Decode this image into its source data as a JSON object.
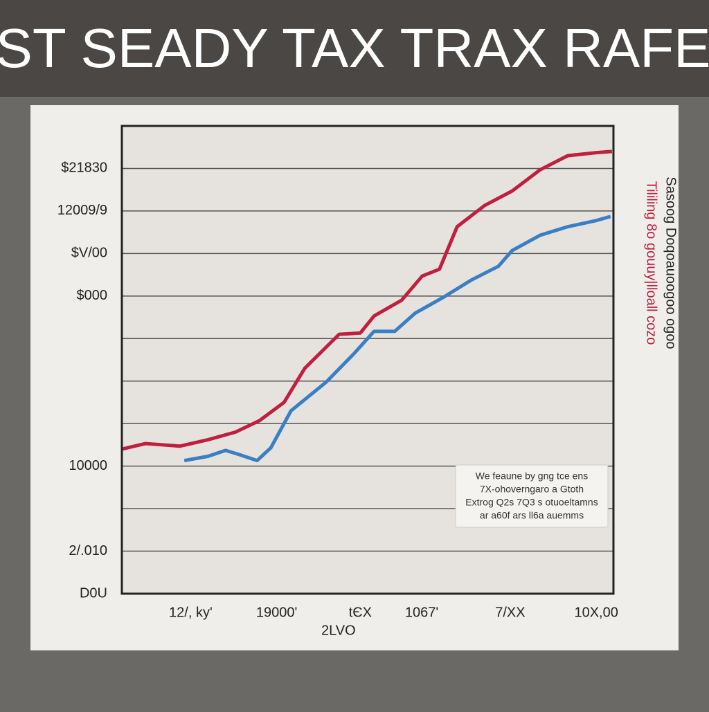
{
  "chart_data": {
    "type": "line",
    "title": "ST SEADY TAX TRAX RAFE",
    "xlim": [
      0,
      100
    ],
    "ylim": [
      0,
      11
    ],
    "grid": true,
    "xticks": [
      {
        "value": 14,
        "label": "12/, ky'"
      },
      {
        "value": 31.5,
        "label": "19000'"
      },
      {
        "value": 48.5,
        "label": "tЄX"
      },
      {
        "value": 61,
        "label": "1067'"
      },
      {
        "value": 79,
        "label": "7/XX"
      },
      {
        "value": 96.5,
        "label": "10X,00"
      }
    ],
    "xlabel": "2LVO",
    "yticks": [
      {
        "value": 0,
        "label": "D0U"
      },
      {
        "value": 1,
        "label": "2/.010"
      },
      2,
      {
        "value": 3,
        "label": "10000"
      },
      4,
      5,
      6,
      {
        "value": 7,
        "label": "$000"
      },
      {
        "value": 8,
        "label": "$V/00"
      },
      {
        "value": 9,
        "label": "12009/9"
      },
      {
        "value": 10,
        "label": "$21830"
      }
    ],
    "series": [
      {
        "name": "Tililing 8o gouuy|lloall cozo",
        "color": "#c0203f",
        "x": [
          0,
          4.8,
          11.8,
          17.5,
          23.1,
          28,
          33,
          37.2,
          44.2,
          48.5,
          51.3,
          56.9,
          61.1,
          64.6,
          68.2,
          73.8,
          79.4,
          85.1,
          90.7,
          96.3,
          99.7
        ],
        "values": [
          3.4,
          3.53,
          3.47,
          3.62,
          3.8,
          4.07,
          4.5,
          5.3,
          6.1,
          6.13,
          6.53,
          6.9,
          7.47,
          7.63,
          8.63,
          9.13,
          9.47,
          9.97,
          10.3,
          10.37,
          10.4
        ]
      },
      {
        "name": "Sasoog Doqoauoogoo ogoo",
        "color": "#3a7fc4",
        "x": [
          12.7,
          17.5,
          21.1,
          23.9,
          27.5,
          30.3,
          34.4,
          41.5,
          47.1,
          51.3,
          55.5,
          59.7,
          65.4,
          71,
          76.6,
          79.4,
          85.1,
          90.7,
          96.3,
          99.4
        ],
        "values": [
          3.13,
          3.23,
          3.37,
          3.27,
          3.13,
          3.43,
          4.3,
          4.97,
          5.63,
          6.17,
          6.17,
          6.6,
          6.97,
          7.37,
          7.7,
          8.07,
          8.43,
          8.63,
          8.77,
          8.87
        ]
      }
    ],
    "annotation": [
      "We feaune by gng tce  ens",
      "7X-ohoverngaro a Gtoth",
      "Extrog Q2s 7Q3 s otuoeltamns",
      "ar a60f ars ll6a auemms"
    ]
  }
}
